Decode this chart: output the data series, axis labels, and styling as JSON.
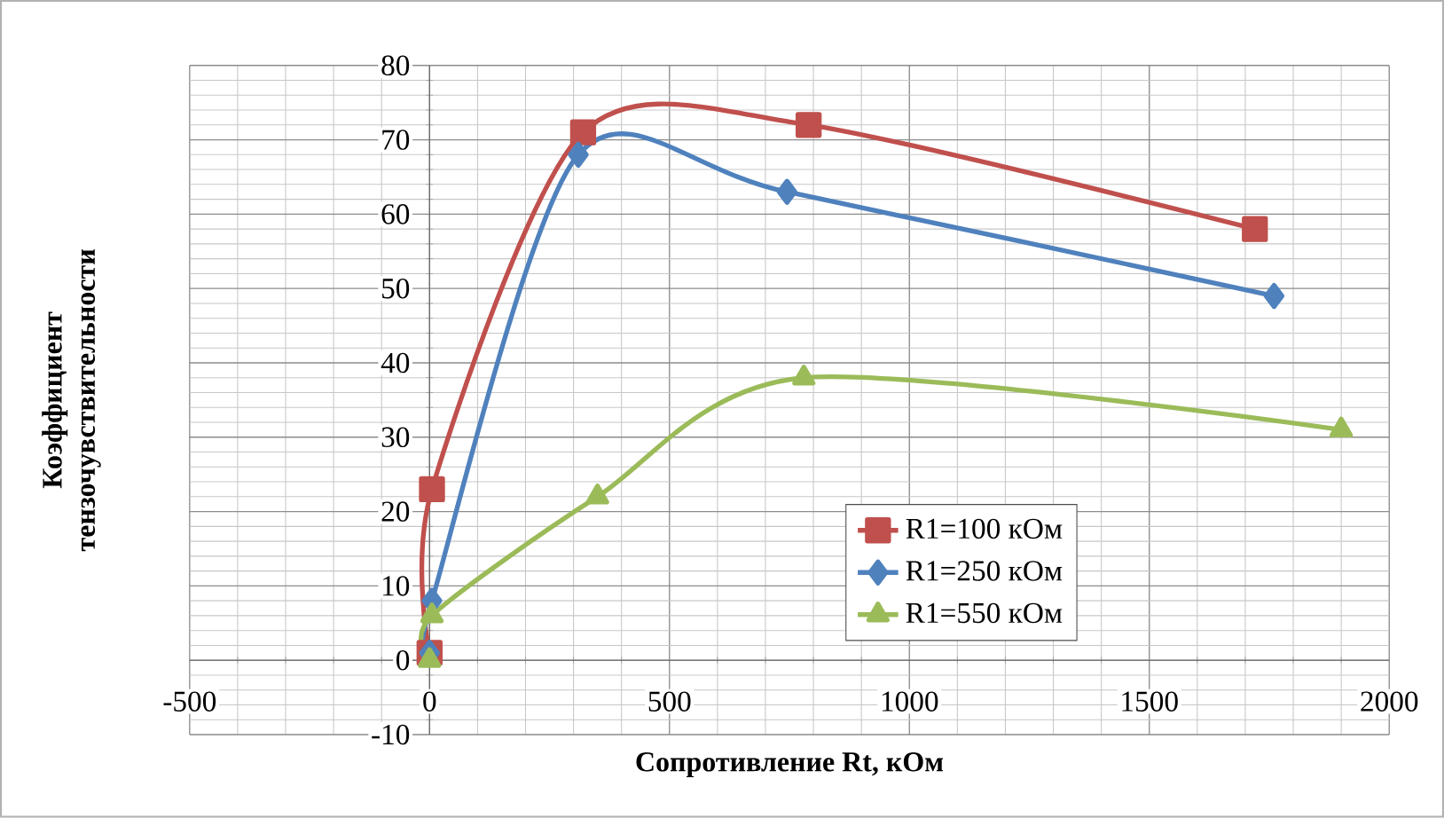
{
  "chart_data": {
    "type": "line",
    "xlabel": "Сопротивление Rt, кОм",
    "ylabel": "Коэффициент тензочувствительности",
    "xlim": [
      -500,
      2000
    ],
    "xticks": [
      -500,
      0,
      500,
      1000,
      1500,
      2000
    ],
    "ylim": [
      -10,
      80
    ],
    "yticks": [
      -10,
      0,
      10,
      20,
      30,
      40,
      50,
      60,
      70,
      80
    ],
    "grid": true,
    "legend": "bottom",
    "series": [
      {
        "name": "R1=100 кОм",
        "color": "#c0504d",
        "marker": "square",
        "x": [
          0,
          5,
          320,
          790,
          1720
        ],
        "values": [
          1,
          23,
          71,
          72,
          58
        ]
      },
      {
        "name": "R1=250 кОм",
        "color": "#4f81bd",
        "marker": "diamond",
        "x": [
          0,
          5,
          310,
          745,
          1760
        ],
        "values": [
          1,
          8,
          68,
          63,
          49
        ]
      },
      {
        "name": "R1=550 кОм",
        "color": "#9bbb59",
        "marker": "triangle",
        "x": [
          0,
          5,
          350,
          780,
          1900
        ],
        "values": [
          0,
          6,
          22,
          38,
          31
        ]
      }
    ]
  }
}
